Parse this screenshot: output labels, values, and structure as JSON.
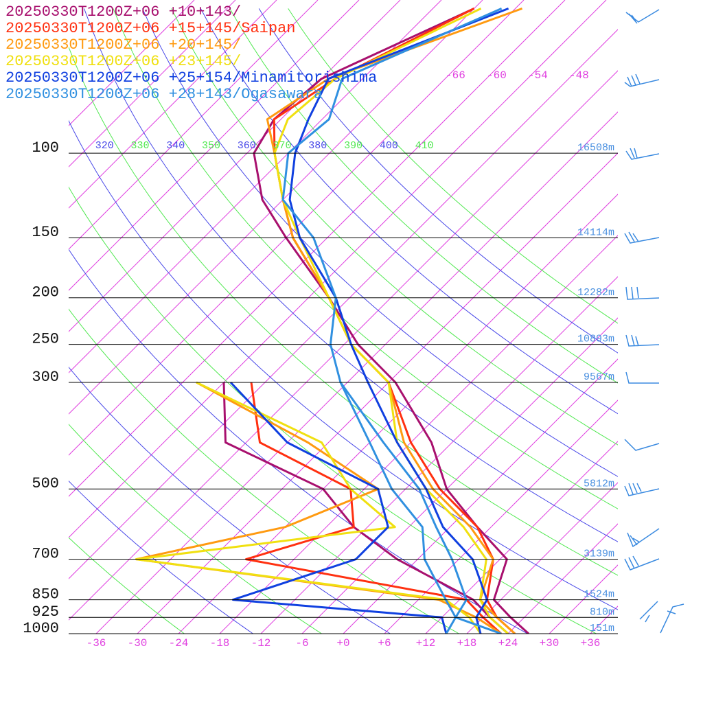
{
  "chart_data": {
    "type": "skewt",
    "log_y": true,
    "ylim": [
      1000,
      48
    ],
    "xlim": [
      -40,
      40
    ],
    "pressure_ticks": [
      100,
      150,
      200,
      250,
      300,
      500,
      700,
      850,
      925,
      1000
    ],
    "xticks": [
      -36,
      -30,
      -24,
      -18,
      -12,
      -6,
      {
        "value": 0,
        "label": "+0"
      },
      {
        "value": 6,
        "label": "+6"
      },
      {
        "value": 12,
        "label": "+12"
      },
      {
        "value": 18,
        "label": "+18"
      },
      {
        "value": 24,
        "label": "+24"
      },
      {
        "value": 30,
        "label": "+30"
      },
      {
        "value": 36,
        "label": "+36"
      }
    ],
    "top_isotherm_labels": [
      -66,
      -60,
      -54,
      -48
    ],
    "isotherms": [
      -114,
      -108,
      -102,
      -96,
      -90,
      -84,
      -78,
      -72,
      -66,
      -60,
      -54,
      -48,
      -42,
      -36,
      -30,
      -24,
      -18,
      -12,
      -6,
      0,
      6,
      12,
      18,
      24,
      30,
      36
    ],
    "isotherm_color": "#e040e0",
    "dry_adiabats": [
      250,
      260,
      270,
      280,
      290,
      300,
      310,
      320,
      330,
      340,
      350,
      360,
      370,
      380,
      390,
      400,
      410
    ],
    "dry_adiabat_colors": [
      "#4848e8",
      "#50e850"
    ],
    "height_labels": [
      {
        "pressure": 100,
        "label": "16508m"
      },
      {
        "pressure": 150,
        "label": "14114m"
      },
      {
        "pressure": 200,
        "label": "12282m"
      },
      {
        "pressure": 250,
        "label": "10893m"
      },
      {
        "pressure": 300,
        "label": "9567m"
      },
      {
        "pressure": 500,
        "label": "5812m"
      },
      {
        "pressure": 700,
        "label": "3139m"
      },
      {
        "pressure": 850,
        "label": "1524m"
      },
      {
        "pressure": 925,
        "label": "810m"
      },
      {
        "pressure": 1000,
        "label": "151m"
      }
    ],
    "height_label_color": "#4a90e0",
    "pressure_levels": [
      50,
      70,
      85,
      100,
      125,
      150,
      200,
      250,
      300,
      400,
      500,
      600,
      700,
      850,
      925,
      1000
    ],
    "series": [
      {
        "name": "20250330T1200Z+06 +10+143/",
        "color": "#a8106e",
        "temperature": [
          -72,
          -84,
          -85,
          -83,
          -75,
          -66,
          -51,
          -40,
          -29,
          -15,
          -6,
          4,
          13,
          17,
          22,
          27
        ],
        "dewpoint": [
          null,
          null,
          null,
          null,
          null,
          null,
          null,
          null,
          -54,
          -45,
          -24,
          -14,
          -3,
          14,
          19,
          24
        ]
      },
      {
        "name": "20250330T1200Z+06 +15+145/Saipan",
        "color": "#ff3010",
        "temperature": [
          -72,
          -82,
          -85,
          -80,
          -72,
          -65,
          -51,
          -41,
          -30,
          -18,
          -7,
          4,
          11,
          16,
          20,
          25
        ],
        "dewpoint": [
          null,
          null,
          null,
          null,
          null,
          null,
          null,
          null,
          -50,
          -40,
          -20,
          -14,
          -25,
          13,
          18,
          23
        ]
      },
      {
        "name": "20250330T1200Z+06 +20+145/",
        "color": "#ff9a10",
        "temperature": [
          -65,
          -83,
          -86,
          -80,
          -72,
          -65,
          -51,
          -41,
          -30,
          -19,
          -8,
          3,
          11,
          15,
          20,
          25
        ],
        "dewpoint": [
          null,
          null,
          null,
          null,
          null,
          null,
          null,
          null,
          -58,
          -33,
          -16,
          -24,
          -41,
          9,
          17,
          23
        ]
      },
      {
        "name": "20250330T1200Z+06 +23+145/",
        "color": "#f0e010",
        "temperature": [
          -71,
          -82,
          -83,
          -80,
          -72,
          -64,
          -51,
          -41,
          -30,
          -20,
          -9,
          2,
          10,
          15,
          19,
          24
        ],
        "dewpoint": [
          null,
          null,
          null,
          null,
          null,
          null,
          null,
          null,
          -58,
          -31,
          -20,
          -8,
          -41,
          10,
          16,
          20
        ]
      },
      {
        "name": "20250330T1200Z+06 +25+154/Minamitorishima",
        "color": "#1040e0",
        "temperature": [
          -67,
          -83,
          -80,
          -77,
          -71,
          -64,
          -50,
          -41,
          -33,
          -20,
          -9,
          -1,
          8,
          16,
          17,
          20
        ],
        "dewpoint": [
          null,
          null,
          null,
          null,
          null,
          null,
          null,
          null,
          -53,
          -36,
          -16,
          -9,
          -9,
          -21,
          12,
          15
        ]
      },
      {
        "name": "20250330T1200Z+06 +28+143/Ogasawara",
        "color": "#3090e0",
        "temperature": [
          -68,
          -81,
          -77,
          -78,
          -72,
          -62,
          -50,
          -44,
          -37,
          -22,
          -10,
          -2,
          5,
          13,
          14,
          23
        ],
        "dewpoint": [
          null,
          null,
          null,
          null,
          null,
          null,
          null,
          null,
          -37,
          -24,
          -14,
          -4,
          1,
          10,
          14,
          15
        ]
      }
    ]
  }
}
